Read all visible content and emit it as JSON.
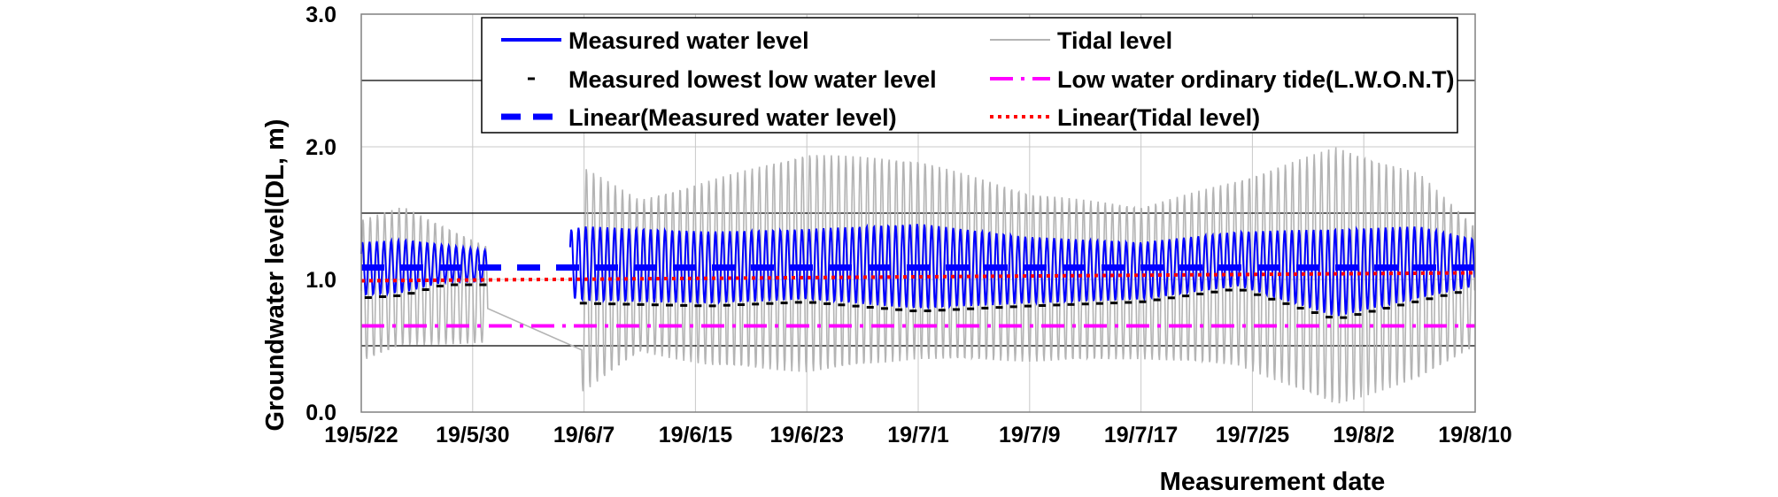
{
  "chart_data": {
    "type": "line",
    "xlabel": "Measurement date",
    "ylabel": "Groundwater level(DL, m)",
    "x_tick_labels": [
      "19/5/22",
      "19/5/30",
      "19/6/7",
      "19/6/15",
      "19/6/23",
      "19/7/1",
      "19/7/9",
      "19/7/17",
      "19/7/25",
      "19/8/2",
      "19/8/10"
    ],
    "y_tick_labels": [
      "0.0",
      "1.0",
      "2.0",
      "3.0"
    ],
    "xlim": [
      "2019-05-22",
      "2019-08-10"
    ],
    "ylim": [
      0.0,
      3.0
    ],
    "grid": true,
    "legend_position": "top-center",
    "series": [
      {
        "name": "Measured water level",
        "color": "#0000ff",
        "style": "solid",
        "segments": [
          [
            "2019-05-22",
            "2019-05-31"
          ],
          [
            "2019-06-06",
            "2019-07-17"
          ],
          [
            "2019-07-17",
            "2019-08-10"
          ]
        ],
        "envelope_high": [
          [
            0,
            1.28
          ],
          [
            3,
            1.3
          ],
          [
            9,
            1.22
          ],
          [
            16,
            1.4
          ],
          [
            25,
            1.36
          ],
          [
            32,
            1.38
          ],
          [
            40,
            1.42
          ],
          [
            48,
            1.32
          ],
          [
            56,
            1.28
          ],
          [
            63,
            1.36
          ],
          [
            70,
            1.38
          ],
          [
            76,
            1.4
          ],
          [
            80,
            1.3
          ]
        ],
        "envelope_low": [
          [
            0,
            0.88
          ],
          [
            3,
            0.9
          ],
          [
            6,
            0.98
          ],
          [
            9,
            0.98
          ],
          [
            16,
            0.84
          ],
          [
            25,
            0.82
          ],
          [
            32,
            0.85
          ],
          [
            40,
            0.78
          ],
          [
            48,
            0.82
          ],
          [
            56,
            0.85
          ],
          [
            63,
            0.95
          ],
          [
            70,
            0.72
          ],
          [
            80,
            0.95
          ]
        ]
      },
      {
        "name": "Measured lowest low water level",
        "color": "#000000",
        "style": "markers",
        "approx_values": [
          0.65,
          0.88,
          0.9,
          0.98,
          0.75,
          0.82,
          0.85,
          0.78,
          0.8,
          0.78,
          0.82,
          0.88,
          0.95,
          0.72,
          0.9
        ]
      },
      {
        "name": "Linear(Measured water level)",
        "color": "#0000ff",
        "style": "dashed",
        "values": [
          [
            0,
            1.09
          ],
          [
            80,
            1.09
          ]
        ]
      },
      {
        "name": "Tidal level",
        "color": "#b4b4b4",
        "style": "solid",
        "envelope_high": [
          [
            0,
            1.45
          ],
          [
            3,
            1.55
          ],
          [
            9,
            1.25
          ],
          [
            16,
            1.85
          ],
          [
            20,
            1.6
          ],
          [
            25,
            1.75
          ],
          [
            32,
            1.95
          ],
          [
            40,
            1.9
          ],
          [
            48,
            1.65
          ],
          [
            56,
            1.55
          ],
          [
            63,
            1.75
          ],
          [
            70,
            2.0
          ],
          [
            76,
            1.8
          ],
          [
            80,
            1.4
          ]
        ],
        "envelope_low": [
          [
            0,
            0.38
          ],
          [
            3,
            0.5
          ],
          [
            9,
            0.52
          ],
          [
            16,
            0.15
          ],
          [
            20,
            0.45
          ],
          [
            25,
            0.35
          ],
          [
            32,
            0.3
          ],
          [
            40,
            0.4
          ],
          [
            48,
            0.38
          ],
          [
            56,
            0.4
          ],
          [
            63,
            0.35
          ],
          [
            70,
            0.05
          ],
          [
            76,
            0.25
          ],
          [
            80,
            0.5
          ]
        ]
      },
      {
        "name": "Low water ordinary tide(L.W.O.N.T)",
        "color": "#ff00ff",
        "style": "dash-dot",
        "values": [
          [
            0,
            0.65
          ],
          [
            80,
            0.65
          ]
        ]
      },
      {
        "name": "Linear(Tidal level)",
        "color": "#ff0000",
        "style": "dotted",
        "values": [
          [
            0,
            0.99
          ],
          [
            80,
            1.05
          ]
        ]
      }
    ]
  }
}
